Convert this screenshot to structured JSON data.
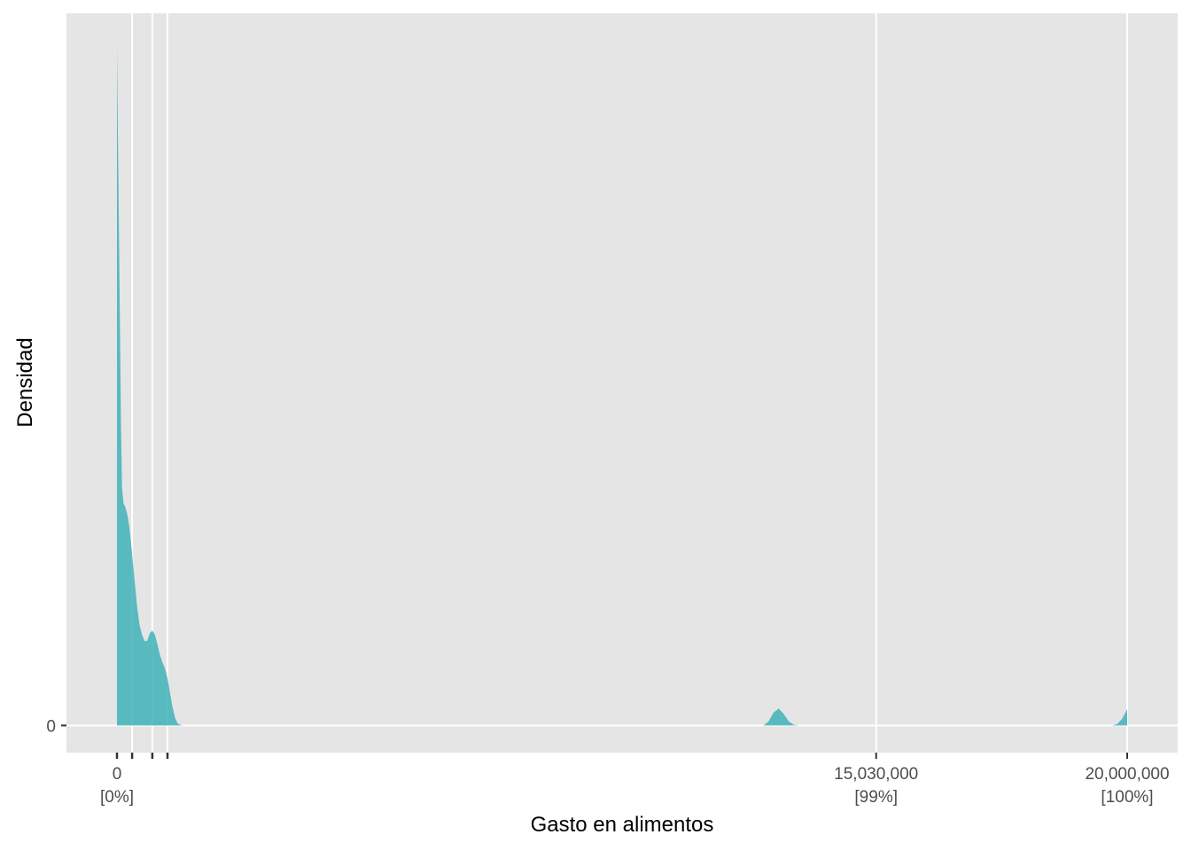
{
  "chart_data": {
    "type": "area",
    "subtype": "density",
    "xlabel": "Gasto en alimentos",
    "ylabel": "Densidad",
    "x_range": [
      -1000000,
      21000000
    ],
    "y_range": [
      -0.04,
      1.05
    ],
    "y_ticks": [
      {
        "value": 0,
        "label": "0"
      }
    ],
    "x_ticks": [
      {
        "value": 0,
        "label": "0",
        "sublabel": "[0%]"
      },
      {
        "value": 15030000,
        "label": "15,030,000",
        "sublabel": "[99%]"
      },
      {
        "value": 20000000,
        "label": "20,000,000",
        "sublabel": "[100%]"
      }
    ],
    "x_gridlines": [
      300000,
      700000,
      1000000,
      15030000,
      20000000
    ],
    "rug_ticks": [
      0,
      300000,
      700000,
      1000000
    ],
    "fill_color": "#3fb1b8",
    "panel_color": "#e5e5e5",
    "grid_color": "#ffffff",
    "series": [
      {
        "x": [
          0,
          20000,
          40000,
          60000,
          80000,
          100000,
          130000,
          160000,
          200000,
          240000,
          280000,
          320000,
          360000,
          400000,
          450000,
          500000,
          550000,
          600000,
          650000,
          700000,
          750000,
          800000,
          850000,
          900000,
          950000,
          1000000,
          1050000,
          1100000,
          1150000,
          1200000,
          1250000,
          1300000,
          12800000,
          12900000,
          13000000,
          13100000,
          13200000,
          13300000,
          13400000,
          13500000,
          19700000,
          19800000,
          19900000,
          19950000,
          20000000
        ],
        "y": [
          1.0,
          0.86,
          0.72,
          0.58,
          0.44,
          0.35,
          0.327,
          0.323,
          0.313,
          0.295,
          0.268,
          0.236,
          0.205,
          0.174,
          0.147,
          0.133,
          0.124,
          0.125,
          0.136,
          0.14,
          0.134,
          0.12,
          0.104,
          0.093,
          0.084,
          0.07,
          0.048,
          0.027,
          0.011,
          0.003,
          0.001,
          0,
          0,
          0.006,
          0.019,
          0.025,
          0.017,
          0.006,
          0.001,
          0,
          0,
          0.002,
          0.01,
          0.017,
          0.024
        ]
      }
    ]
  }
}
